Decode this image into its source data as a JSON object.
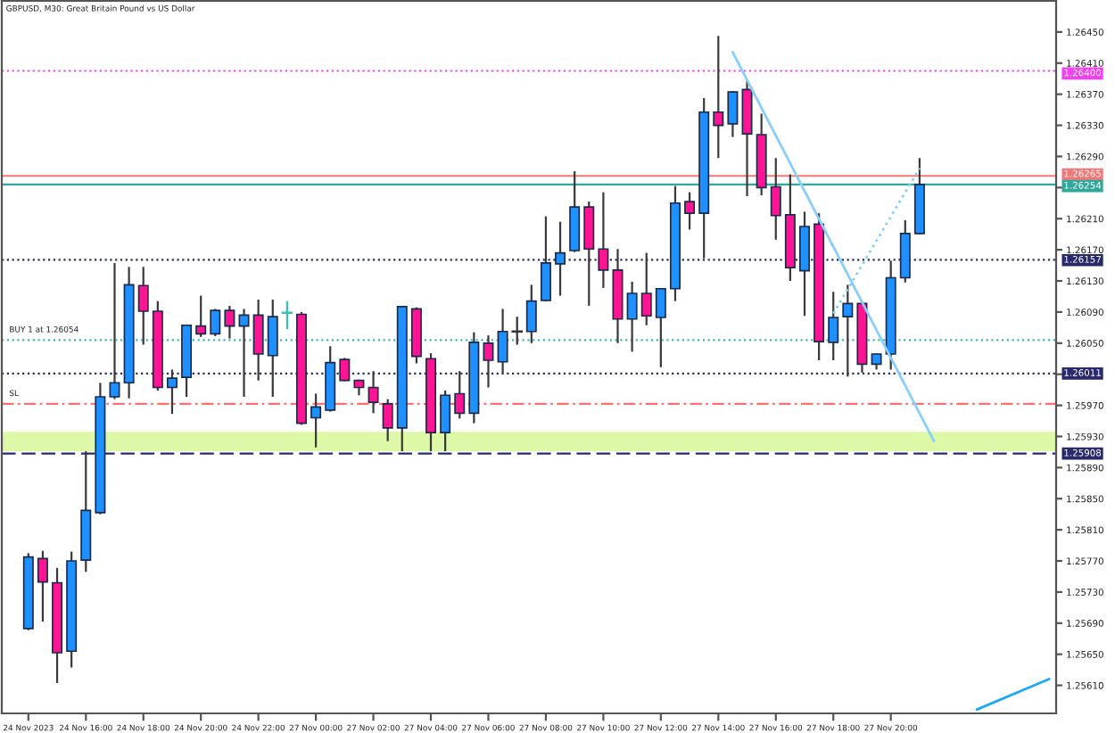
{
  "chart_data": {
    "type": "candlestick",
    "title": "GBPUSD, M30: Great Britain Pound vs US Dollar",
    "categories": [
      "24 Nov 2023",
      null,
      null,
      null,
      "24 Nov 16:00",
      null,
      null,
      null,
      "24 Nov 18:00",
      null,
      null,
      null,
      "24 Nov 20:00",
      null,
      null,
      null,
      "24 Nov 22:00",
      null,
      null,
      null,
      "27 Nov 00:00",
      null,
      null,
      null,
      "27 Nov 02:00",
      null,
      null,
      null,
      "27 Nov 04:00",
      null,
      null,
      null,
      "27 Nov 06:00",
      null,
      null,
      null,
      "27 Nov 08:00",
      null,
      null,
      null,
      "27 Nov 10:00",
      null,
      null,
      null,
      "27 Nov 12:00",
      null,
      null,
      null,
      "27 Nov 14:00",
      null,
      null,
      null,
      "27 Nov 16:00",
      null,
      null,
      null,
      "27 Nov 18:00",
      null,
      null,
      null,
      "27 Nov 20:00",
      null,
      null,
      null,
      null,
      null,
      null,
      null,
      null,
      null,
      null,
      null
    ],
    "ohlc": [
      [
        1.25683,
        1.2578,
        1.25681,
        1.25775
      ],
      [
        1.25773,
        1.25783,
        1.25692,
        1.25743
      ],
      [
        1.25742,
        1.25761,
        1.25613,
        1.25652
      ],
      [
        1.25654,
        1.25782,
        1.25633,
        1.2577
      ],
      [
        1.25771,
        1.25911,
        1.25756,
        1.25835
      ],
      [
        1.25832,
        1.25999,
        1.2583,
        1.25981
      ],
      [
        1.25981,
        1.26153,
        1.25978,
        1.25999
      ],
      [
        1.25999,
        1.26148,
        1.25979,
        1.26125
      ],
      [
        1.26124,
        1.26148,
        1.26048,
        1.26091
      ],
      [
        1.26091,
        1.26104,
        1.25989,
        1.25993
      ],
      [
        1.25993,
        1.26016,
        1.25959,
        1.26005
      ],
      [
        1.26006,
        1.26074,
        1.25981,
        1.26073
      ],
      [
        1.26072,
        1.26111,
        1.26058,
        1.26062
      ],
      [
        1.26062,
        1.26094,
        1.26059,
        1.26092
      ],
      [
        1.26092,
        1.26098,
        1.26056,
        1.26072
      ],
      [
        1.26072,
        1.26094,
        1.25981,
        1.26086
      ],
      [
        1.26086,
        1.26106,
        1.26002,
        1.26036
      ],
      [
        1.26034,
        1.26106,
        1.25981,
        1.26084
      ],
      [
        1.26089,
        1.26104,
        1.26068,
        1.26089
      ],
      [
        1.26087,
        1.2609,
        1.25945,
        1.25947
      ],
      [
        1.25954,
        1.25985,
        1.25916,
        1.25968
      ],
      [
        1.25964,
        1.26046,
        1.25962,
        1.26025
      ],
      [
        1.26029,
        1.26031,
        1.26001,
        1.26002
      ],
      [
        1.26002,
        1.26003,
        1.25983,
        1.25993
      ],
      [
        1.25993,
        1.26014,
        1.2596,
        1.25974
      ],
      [
        1.25972,
        1.25978,
        1.25924,
        1.25941
      ],
      [
        1.25941,
        1.26098,
        1.25911,
        1.26097
      ],
      [
        1.26094,
        1.26096,
        1.26024,
        1.26033
      ],
      [
        1.2603,
        1.26037,
        1.25911,
        1.25935
      ],
      [
        1.25935,
        1.25989,
        1.25911,
        1.25983
      ],
      [
        1.25985,
        1.26014,
        1.25953,
        1.2596
      ],
      [
        1.2596,
        1.26064,
        1.25947,
        1.26051
      ],
      [
        1.2605,
        1.2606,
        1.25993,
        1.26028
      ],
      [
        1.26026,
        1.26094,
        1.26012,
        1.26065
      ],
      [
        1.26065,
        1.26084,
        1.26048,
        1.26065
      ],
      [
        1.26065,
        1.26125,
        1.2605,
        1.26104
      ],
      [
        1.26105,
        1.26213,
        1.26104,
        1.26153
      ],
      [
        1.26152,
        1.26206,
        1.26111,
        1.26166
      ],
      [
        1.26169,
        1.26271,
        1.26167,
        1.26225
      ],
      [
        1.26225,
        1.26232,
        1.26098,
        1.26171
      ],
      [
        1.26171,
        1.26244,
        1.26121,
        1.26144
      ],
      [
        1.26144,
        1.26171,
        1.2605,
        1.26081
      ],
      [
        1.26081,
        1.26129,
        1.26039,
        1.26114
      ],
      [
        1.26114,
        1.26166,
        1.26073,
        1.26085
      ],
      [
        1.26083,
        1.26121,
        1.26019,
        1.2612
      ],
      [
        1.2612,
        1.26252,
        1.26104,
        1.2623
      ],
      [
        1.26232,
        1.26244,
        1.26196,
        1.26217
      ],
      [
        1.26217,
        1.26365,
        1.26159,
        1.26347
      ],
      [
        1.26347,
        1.26445,
        1.26288,
        1.2633
      ],
      [
        1.26332,
        1.26374,
        1.26315,
        1.26373
      ],
      [
        1.26376,
        1.26387,
        1.26239,
        1.26319
      ],
      [
        1.26318,
        1.26345,
        1.2624,
        1.2625
      ],
      [
        1.26251,
        1.26288,
        1.26183,
        1.26214
      ],
      [
        1.26215,
        1.26267,
        1.2613,
        1.26147
      ],
      [
        1.26143,
        1.26219,
        1.26085,
        1.262
      ],
      [
        1.26203,
        1.26217,
        1.26028,
        1.26052
      ],
      [
        1.26051,
        1.26116,
        1.26028,
        1.26083
      ],
      [
        1.26084,
        1.26125,
        1.26007,
        1.26101
      ],
      [
        1.26101,
        1.26102,
        1.26012,
        1.26023
      ],
      [
        1.26023,
        1.26037,
        1.26016,
        1.26036
      ],
      [
        1.26036,
        1.26156,
        1.26016,
        1.26134
      ],
      [
        1.26134,
        1.26208,
        1.26128,
        1.26191
      ],
      [
        1.26191,
        1.26288,
        1.2619,
        1.26254
      ],
      null,
      null,
      null,
      null,
      null,
      null,
      null,
      null,
      null
    ],
    "colors": [
      "#1e90ff",
      "#ff1493",
      "#ff1493",
      "#1e90ff",
      "#1e90ff",
      "#1e90ff",
      "#1e90ff",
      "#1e90ff",
      "#ff1493",
      "#ff1493",
      "#1e90ff",
      "#1e90ff",
      "#ff1493",
      "#1e90ff",
      "#ff1493",
      "#1e90ff",
      "#ff1493",
      "#1e90ff",
      "#3fbfb0",
      "#ff1493",
      "#1e90ff",
      "#1e90ff",
      "#ff1493",
      "#ff1493",
      "#ff1493",
      "#ff1493",
      "#1e90ff",
      "#ff1493",
      "#ff1493",
      "#1e90ff",
      "#ff1493",
      "#1e90ff",
      "#ff1493",
      "#1e90ff",
      "#333333",
      "#1e90ff",
      "#1e90ff",
      "#1e90ff",
      "#1e90ff",
      "#ff1493",
      "#ff1493",
      "#ff1493",
      "#1e90ff",
      "#ff1493",
      "#1e90ff",
      "#1e90ff",
      "#ff1493",
      "#1e90ff",
      "#ff1493",
      "#1e90ff",
      "#ff1493",
      "#ff1493",
      "#ff1493",
      "#ff1493",
      "#1e90ff",
      "#ff1493",
      "#1e90ff",
      "#1e90ff",
      "#ff1493",
      "#1e90ff",
      "#1e90ff",
      "#1e90ff",
      "#1e90ff",
      null,
      null,
      null,
      null,
      null,
      null,
      null,
      null,
      null
    ],
    "series": [
      {
        "type": "line",
        "color": "#87cefa",
        "line_style": "solid",
        "values": [
          null,
          null,
          null,
          null,
          null,
          null,
          null,
          null,
          null,
          null,
          null,
          null,
          null,
          null,
          null,
          null,
          null,
          null,
          null,
          null,
          null,
          null,
          null,
          null,
          null,
          null,
          null,
          null,
          null,
          null,
          null,
          null,
          null,
          null,
          null,
          null,
          null,
          null,
          null,
          null,
          null,
          null,
          null,
          null,
          null,
          null,
          null,
          null,
          null,
          1.26424,
          null,
          null,
          null,
          null,
          null,
          null,
          null,
          null,
          null,
          null,
          null,
          null,
          null,
          1.25924,
          null,
          null,
          null,
          null,
          null,
          null,
          null,
          null
        ]
      },
      {
        "type": "line",
        "color": "#87cefa",
        "line_style": "dotted",
        "values": [
          null,
          null,
          null,
          null,
          null,
          null,
          null,
          null,
          null,
          null,
          null,
          null,
          null,
          null,
          null,
          null,
          null,
          null,
          null,
          null,
          null,
          null,
          null,
          null,
          null,
          null,
          null,
          null,
          null,
          null,
          null,
          null,
          null,
          null,
          null,
          null,
          null,
          null,
          null,
          null,
          null,
          null,
          null,
          null,
          null,
          null,
          null,
          null,
          null,
          null,
          null,
          null,
          null,
          null,
          null,
          null,
          1.26088,
          null,
          null,
          null,
          null,
          null,
          1.26275,
          null,
          null,
          null,
          null,
          null,
          null,
          null,
          null,
          null
        ]
      },
      {
        "type": "line",
        "color": "#1ea8f0",
        "line_style": "solid",
        "values": [
          null,
          null,
          null,
          null,
          null,
          null,
          null,
          null,
          null,
          null,
          null,
          null,
          null,
          null,
          null,
          null,
          null,
          null,
          null,
          null,
          null,
          null,
          null,
          null,
          null,
          null,
          null,
          null,
          null,
          null,
          null,
          null,
          null,
          null,
          null,
          null,
          null,
          null,
          null,
          null,
          null,
          null,
          null,
          null,
          null,
          null,
          null,
          null,
          null,
          null,
          null,
          null,
          null,
          null,
          null,
          null,
          null,
          null,
          null,
          null,
          null,
          null,
          null,
          null,
          null,
          null,
          1.25579,
          null,
          null,
          null,
          null,
          1.25618
        ]
      }
    ],
    "ylim": [
      1.25574,
      1.2649
    ],
    "yticks": [
      {
        "value": 1.2645,
        "label": "1.26450"
      },
      {
        "value": 1.2641,
        "label": "1.26410"
      },
      {
        "value": 1.2637,
        "label": "1.26370"
      },
      {
        "value": 1.2633,
        "label": "1.26330"
      },
      {
        "value": 1.2629,
        "label": "1.26290"
      },
      {
        "value": 1.2625,
        "label": null
      },
      {
        "value": 1.2621,
        "label": "1.26210"
      },
      {
        "value": 1.2617,
        "label": "1.26170"
      },
      {
        "value": 1.2613,
        "label": "1.26130"
      },
      {
        "value": 1.2609,
        "label": "1.26090"
      },
      {
        "value": 1.2605,
        "label": "1.26050"
      },
      {
        "value": 1.2601,
        "label": null
      },
      {
        "value": 1.2597,
        "label": "1.25970"
      },
      {
        "value": 1.2593,
        "label": "1.25930"
      },
      {
        "value": 1.2589,
        "label": "1.25890"
      },
      {
        "value": 1.2585,
        "label": "1.25850"
      },
      {
        "value": 1.2581,
        "label": "1.25810"
      },
      {
        "value": 1.2577,
        "label": "1.25770"
      },
      {
        "value": 1.2573,
        "label": "1.25730"
      },
      {
        "value": 1.2569,
        "label": "1.25690"
      },
      {
        "value": 1.2565,
        "label": "1.25650"
      },
      {
        "value": 1.2561,
        "label": "1.25610"
      }
    ],
    "ref_lines": [
      {
        "axis": "y",
        "value": 1.264,
        "label": "1.26400",
        "color": "#f040f0",
        "line_style": "dotted"
      },
      {
        "axis": "y",
        "value": 1.26265,
        "label": "1.26265",
        "color": "#f07878",
        "line_style": "solid"
      },
      {
        "axis": "y",
        "value": 1.26254,
        "label": "1.26254",
        "color": "#30a89c",
        "line_style": "solid"
      },
      {
        "axis": "y",
        "value": 1.26157,
        "label": "1.26157",
        "color": "#2a2a6a",
        "line_style": "dotted"
      },
      {
        "axis": "y",
        "value": 1.26054,
        "color": "#40b8b8",
        "line_style": "dotted"
      },
      {
        "axis": "y",
        "value": 1.26011,
        "label": "1.26011",
        "color": "#2a2a6a",
        "line_style": "dotted"
      },
      {
        "axis": "y",
        "value": 1.25972,
        "color": "#ff7070",
        "line_style": "dashdot"
      },
      {
        "axis": "y",
        "value": 1.25908,
        "label": "1.25908",
        "color": "#2a2a6a",
        "line_style": "dashed"
      }
    ],
    "bands": [
      {
        "axis": "y",
        "from": 1.25911,
        "to": 1.25936,
        "color": "#ddf9a8"
      }
    ],
    "annotations": [
      {
        "text": "BUY 1 at 1.26054",
        "y": 1.26054
      },
      {
        "text": "SL",
        "y": 1.25972
      }
    ]
  }
}
